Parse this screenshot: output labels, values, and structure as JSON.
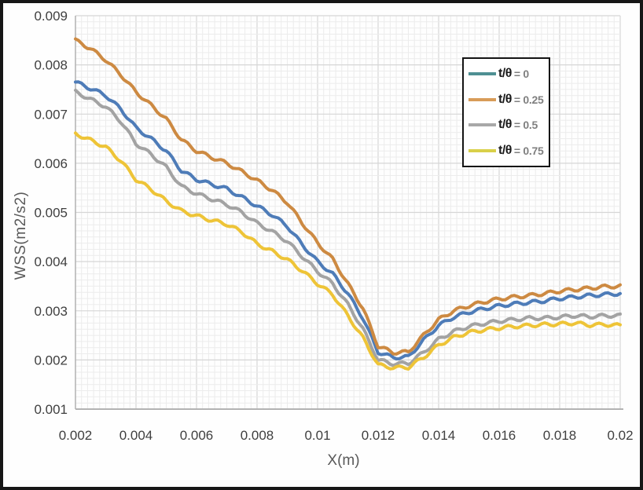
{
  "figure": {
    "border_color": "#161616",
    "background": "#fefefe"
  },
  "chart_data": {
    "type": "line",
    "title": "",
    "xlabel": "X(m)",
    "ylabel": "WSS(m2/s2)",
    "xlim": [
      0.002,
      0.02
    ],
    "ylim": [
      0.001,
      0.009
    ],
    "x_tick_labels": [
      "0.002",
      "0.004",
      "0.006",
      "0.008",
      "0.01",
      "0.012",
      "0.014",
      "0.016",
      "0.018",
      "0.02"
    ],
    "y_tick_labels": [
      "0.001",
      "0.002",
      "0.003",
      "0.004",
      "0.005",
      "0.006",
      "0.007",
      "0.008",
      "0.009"
    ],
    "x_tick_step": 0.002,
    "y_tick_step": 0.001,
    "grid": {
      "on": true,
      "minor_x": 0.0002,
      "minor_y": 0.000125,
      "minor_color": "#ececec",
      "major_color": "#d6d6d6"
    },
    "axis_color": "#b3b3b3",
    "tick_label_color": "#3f3f3f",
    "axis_title_color": "#595959",
    "legend": {
      "position": "top-right",
      "border_color": "#141414",
      "background": "#ffffff",
      "prefix_color": "#1a1a1a",
      "value_color": "#7f7f7f"
    },
    "ripple": {
      "amplitude": 3.5e-05,
      "wavelength": 0.0006
    },
    "x": [
      0.002,
      0.0025,
      0.003,
      0.0035,
      0.004,
      0.0045,
      0.005,
      0.0055,
      0.006,
      0.0065,
      0.007,
      0.0075,
      0.008,
      0.0085,
      0.009,
      0.0095,
      0.01,
      0.0105,
      0.011,
      0.0115,
      0.012,
      0.0125,
      0.013,
      0.0135,
      0.014,
      0.0145,
      0.015,
      0.0155,
      0.016,
      0.0165,
      0.017,
      0.0175,
      0.018,
      0.0185,
      0.019,
      0.0195,
      0.02
    ],
    "series": [
      {
        "label_prefix": "t/θ",
        "label_value": "= 0",
        "line_color": "#4e7cb8",
        "swatch_color": "#4f9093",
        "values": [
          0.00765,
          0.00752,
          0.00738,
          0.0071,
          0.00672,
          0.0065,
          0.00625,
          0.00585,
          0.00567,
          0.00557,
          0.00548,
          0.00531,
          0.00513,
          0.00495,
          0.00472,
          0.00434,
          0.004,
          0.00375,
          0.00335,
          0.00285,
          0.00216,
          0.00205,
          0.00206,
          0.0024,
          0.0027,
          0.00287,
          0.00297,
          0.00304,
          0.0031,
          0.00314,
          0.00317,
          0.0032,
          0.00325,
          0.00328,
          0.00331,
          0.00333,
          0.00335
        ]
      },
      {
        "label_prefix": "t/θ",
        "label_value": "= 0.25",
        "line_color": "#cd8a42",
        "swatch_color": "#d89c58",
        "values": [
          0.0085,
          0.00833,
          0.0081,
          0.0078,
          0.00745,
          0.00718,
          0.0069,
          0.00648,
          0.00625,
          0.00612,
          0.006,
          0.00583,
          0.00565,
          0.00545,
          0.0052,
          0.00478,
          0.00438,
          0.00405,
          0.00355,
          0.00305,
          0.00228,
          0.00215,
          0.00216,
          0.0025,
          0.00282,
          0.003,
          0.0031,
          0.00318,
          0.00324,
          0.00328,
          0.00331,
          0.00335,
          0.0034,
          0.00343,
          0.00346,
          0.00349,
          0.0035
        ]
      },
      {
        "label_prefix": "t/θ",
        "label_value": "= 0.5",
        "line_color": "#a3a3a3",
        "swatch_color": "#a8a8a8",
        "values": [
          0.00745,
          0.0073,
          0.00715,
          0.00685,
          0.0064,
          0.00618,
          0.00592,
          0.00553,
          0.00538,
          0.00527,
          0.00516,
          0.005,
          0.00478,
          0.00461,
          0.00441,
          0.0041,
          0.0038,
          0.00355,
          0.00313,
          0.00263,
          0.002,
          0.00192,
          0.00193,
          0.00215,
          0.00242,
          0.00258,
          0.00268,
          0.00274,
          0.00279,
          0.00282,
          0.00285,
          0.00285,
          0.00287,
          0.0029,
          0.00288,
          0.0029,
          0.0029
        ]
      },
      {
        "label_prefix": "t/θ",
        "label_value": "= 0.75",
        "line_color": "#eec437",
        "swatch_color": "#d9d04a",
        "values": [
          0.0066,
          0.00647,
          0.00633,
          0.00605,
          0.00567,
          0.00547,
          0.00523,
          0.00503,
          0.00493,
          0.00484,
          0.00476,
          0.0046,
          0.00436,
          0.00421,
          0.00404,
          0.00381,
          0.00355,
          0.00333,
          0.0029,
          0.00245,
          0.0019,
          0.00184,
          0.00185,
          0.00205,
          0.0023,
          0.00246,
          0.00256,
          0.00261,
          0.00265,
          0.00268,
          0.0027,
          0.00272,
          0.00273,
          0.00275,
          0.00271,
          0.00272,
          0.0027
        ]
      }
    ]
  }
}
